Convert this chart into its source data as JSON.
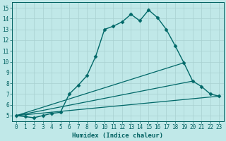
{
  "xlabel": "Humidex (Indice chaleur)",
  "ylabel": "",
  "xlim": [
    -0.5,
    23.5
  ],
  "ylim": [
    4.5,
    15.5
  ],
  "xticks": [
    0,
    1,
    2,
    3,
    4,
    5,
    6,
    7,
    8,
    9,
    10,
    11,
    12,
    13,
    14,
    15,
    16,
    17,
    18,
    19,
    20,
    21,
    22,
    23
  ],
  "yticks": [
    5,
    6,
    7,
    8,
    9,
    10,
    11,
    12,
    13,
    14,
    15
  ],
  "background_color": "#c0e8e8",
  "grid_color": "#a8d0d0",
  "line_color": "#006060",
  "lines": [
    {
      "x": [
        0,
        1,
        2,
        3,
        4,
        5,
        6,
        7,
        8,
        9,
        10,
        11,
        12,
        13,
        14,
        15,
        16,
        17,
        18,
        19,
        20,
        21,
        22,
        23
      ],
      "y": [
        5.0,
        4.9,
        4.8,
        5.0,
        5.2,
        5.3,
        7.0,
        7.8,
        8.7,
        10.5,
        13.0,
        13.3,
        13.7,
        14.4,
        13.8,
        14.8,
        14.1,
        13.0,
        11.5,
        9.9,
        8.2,
        7.7,
        7.0,
        6.8
      ],
      "marker": "D",
      "marker_size": 2.5,
      "linewidth": 1.0,
      "color": "#006868"
    },
    {
      "x": [
        0,
        19
      ],
      "y": [
        5.0,
        9.9
      ],
      "marker": null,
      "linewidth": 0.9,
      "color": "#006868"
    },
    {
      "x": [
        0,
        20
      ],
      "y": [
        5.0,
        8.2
      ],
      "marker": null,
      "linewidth": 0.9,
      "color": "#006868"
    },
    {
      "x": [
        0,
        23
      ],
      "y": [
        5.0,
        6.8
      ],
      "marker": null,
      "linewidth": 0.9,
      "color": "#006868"
    }
  ]
}
